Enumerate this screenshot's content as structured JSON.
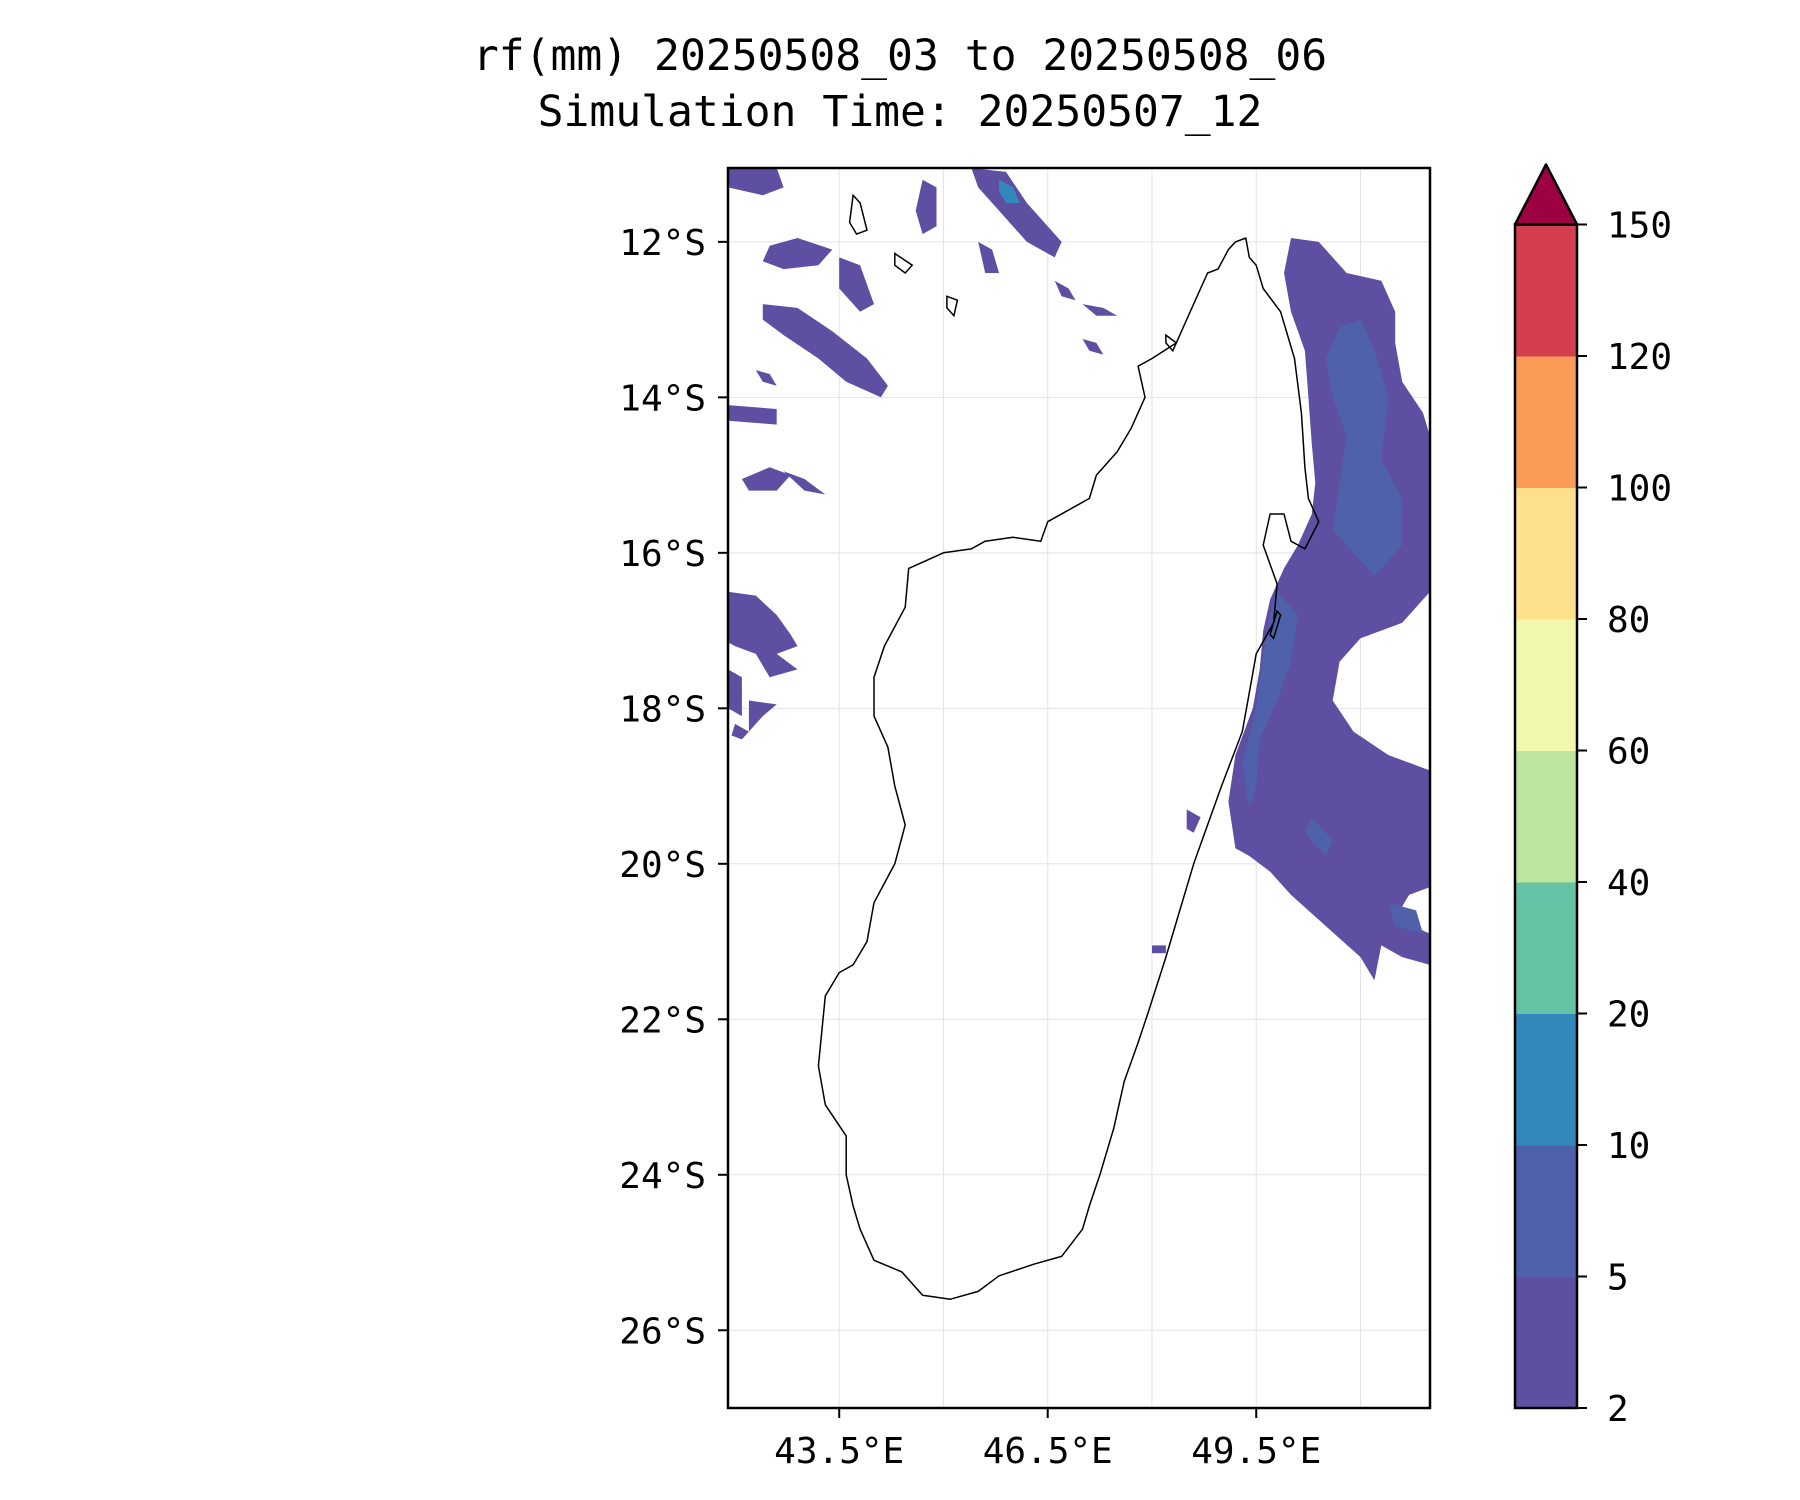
{
  "title": {
    "line1": "rf(mm) 20250508_03 to 20250508_06",
    "line2": "Simulation Time: 20250507_12"
  },
  "map": {
    "lon_range": [
      41.9,
      52.0
    ],
    "lat_range": [
      -27.0,
      -11.05
    ],
    "grid": true,
    "lat_ticks": [
      -12,
      -14,
      -16,
      -18,
      -20,
      -22,
      -24,
      -26
    ],
    "lat_tick_labels": [
      "12°S",
      "14°S",
      "16°S",
      "18°S",
      "20°S",
      "22°S",
      "24°S",
      "26°S"
    ],
    "lon_ticks": [
      43.5,
      46.5,
      49.5
    ],
    "lon_tick_labels": [
      "43.5°E",
      "46.5°E",
      "49.5°E"
    ],
    "minor_lon_gridlines": [
      45.0,
      48.0,
      51.0
    ],
    "coastline": [
      [
        49.2,
        -12.0
      ],
      [
        49.35,
        -11.95
      ],
      [
        49.4,
        -12.2
      ],
      [
        49.5,
        -12.3
      ],
      [
        49.6,
        -12.6
      ],
      [
        49.85,
        -12.9
      ],
      [
        50.05,
        -13.5
      ],
      [
        50.15,
        -14.2
      ],
      [
        50.2,
        -14.9
      ],
      [
        50.25,
        -15.3
      ],
      [
        50.4,
        -15.6
      ],
      [
        50.2,
        -15.95
      ],
      [
        50.0,
        -15.85
      ],
      [
        49.9,
        -15.5
      ],
      [
        49.7,
        -15.5
      ],
      [
        49.6,
        -15.9
      ],
      [
        49.8,
        -16.4
      ],
      [
        49.75,
        -16.9
      ],
      [
        49.5,
        -17.3
      ],
      [
        49.4,
        -17.8
      ],
      [
        49.3,
        -18.3
      ],
      [
        49.0,
        -19.0
      ],
      [
        48.8,
        -19.5
      ],
      [
        48.6,
        -20.0
      ],
      [
        48.4,
        -20.6
      ],
      [
        48.2,
        -21.2
      ],
      [
        47.95,
        -21.9
      ],
      [
        47.8,
        -22.3
      ],
      [
        47.6,
        -22.8
      ],
      [
        47.45,
        -23.4
      ],
      [
        47.25,
        -24.0
      ],
      [
        47.1,
        -24.4
      ],
      [
        47.0,
        -24.7
      ],
      [
        46.7,
        -25.05
      ],
      [
        46.3,
        -25.15
      ],
      [
        45.8,
        -25.3
      ],
      [
        45.5,
        -25.5
      ],
      [
        45.1,
        -25.6
      ],
      [
        44.7,
        -25.55
      ],
      [
        44.4,
        -25.25
      ],
      [
        44.0,
        -25.1
      ],
      [
        43.8,
        -24.7
      ],
      [
        43.7,
        -24.4
      ],
      [
        43.6,
        -24.0
      ],
      [
        43.6,
        -23.5
      ],
      [
        43.3,
        -23.1
      ],
      [
        43.2,
        -22.6
      ],
      [
        43.3,
        -21.7
      ],
      [
        43.5,
        -21.4
      ],
      [
        43.7,
        -21.3
      ],
      [
        43.9,
        -21.0
      ],
      [
        44.0,
        -20.5
      ],
      [
        44.3,
        -20.0
      ],
      [
        44.45,
        -19.5
      ],
      [
        44.3,
        -19.0
      ],
      [
        44.2,
        -18.5
      ],
      [
        44.0,
        -18.1
      ],
      [
        44.0,
        -17.6
      ],
      [
        44.15,
        -17.2
      ],
      [
        44.45,
        -16.7
      ],
      [
        44.5,
        -16.2
      ],
      [
        45.0,
        -16.0
      ],
      [
        45.4,
        -15.95
      ],
      [
        45.6,
        -15.85
      ],
      [
        46.0,
        -15.8
      ],
      [
        46.4,
        -15.85
      ],
      [
        46.5,
        -15.6
      ],
      [
        46.9,
        -15.4
      ],
      [
        47.1,
        -15.3
      ],
      [
        47.2,
        -15.0
      ],
      [
        47.5,
        -14.7
      ],
      [
        47.7,
        -14.4
      ],
      [
        47.9,
        -14.0
      ],
      [
        47.8,
        -13.6
      ],
      [
        48.0,
        -13.5
      ],
      [
        48.35,
        -13.3
      ],
      [
        48.5,
        -13.0
      ],
      [
        48.7,
        -12.6
      ],
      [
        48.8,
        -12.4
      ],
      [
        48.95,
        -12.35
      ],
      [
        49.1,
        -12.1
      ],
      [
        49.2,
        -12.0
      ]
    ],
    "islands": [
      [
        [
          43.7,
          -11.4
        ],
        [
          43.8,
          -11.5
        ],
        [
          43.9,
          -11.85
        ],
        [
          43.75,
          -11.9
        ],
        [
          43.65,
          -11.75
        ],
        [
          43.7,
          -11.4
        ]
      ],
      [
        [
          44.3,
          -12.15
        ],
        [
          44.55,
          -12.3
        ],
        [
          44.45,
          -12.4
        ],
        [
          44.3,
          -12.3
        ],
        [
          44.3,
          -12.15
        ]
      ],
      [
        [
          45.05,
          -12.7
        ],
        [
          45.2,
          -12.75
        ],
        [
          45.15,
          -12.95
        ],
        [
          45.05,
          -12.85
        ],
        [
          45.05,
          -12.7
        ]
      ],
      [
        [
          49.8,
          -16.75
        ],
        [
          49.85,
          -16.8
        ],
        [
          49.75,
          -17.1
        ],
        [
          49.7,
          -17.05
        ],
        [
          49.8,
          -16.75
        ]
      ],
      [
        [
          48.2,
          -13.2
        ],
        [
          48.35,
          -13.3
        ],
        [
          48.3,
          -13.4
        ],
        [
          48.2,
          -13.3
        ],
        [
          48.2,
          -13.2
        ]
      ]
    ],
    "rain_patches": [
      {
        "level": 1,
        "points": [
          [
            41.9,
            -11.05
          ],
          [
            42.6,
            -11.05
          ],
          [
            42.7,
            -11.3
          ],
          [
            42.4,
            -11.4
          ],
          [
            41.9,
            -11.3
          ]
        ]
      },
      {
        "level": 1,
        "points": [
          [
            42.5,
            -12.05
          ],
          [
            42.9,
            -11.95
          ],
          [
            43.4,
            -12.1
          ],
          [
            43.2,
            -12.3
          ],
          [
            42.7,
            -12.35
          ],
          [
            42.4,
            -12.25
          ]
        ]
      },
      {
        "level": 1,
        "points": [
          [
            42.4,
            -12.8
          ],
          [
            42.9,
            -12.85
          ],
          [
            43.4,
            -13.15
          ],
          [
            43.9,
            -13.5
          ],
          [
            44.2,
            -13.85
          ],
          [
            44.1,
            -14.0
          ],
          [
            43.6,
            -13.8
          ],
          [
            43.2,
            -13.5
          ],
          [
            42.7,
            -13.2
          ],
          [
            42.4,
            -13.0
          ]
        ]
      },
      {
        "level": 1,
        "points": [
          [
            43.5,
            -12.2
          ],
          [
            43.8,
            -12.3
          ],
          [
            44.0,
            -12.8
          ],
          [
            43.8,
            -12.9
          ],
          [
            43.5,
            -12.6
          ]
        ]
      },
      {
        "level": 1,
        "points": [
          [
            44.7,
            -11.2
          ],
          [
            44.9,
            -11.3
          ],
          [
            44.9,
            -11.8
          ],
          [
            44.7,
            -11.9
          ],
          [
            44.6,
            -11.6
          ]
        ]
      },
      {
        "level": 1,
        "points": [
          [
            45.4,
            -11.05
          ],
          [
            45.9,
            -11.1
          ],
          [
            46.2,
            -11.5
          ],
          [
            46.5,
            -11.8
          ],
          [
            46.7,
            -12.0
          ],
          [
            46.6,
            -12.2
          ],
          [
            46.2,
            -12.0
          ],
          [
            45.8,
            -11.6
          ],
          [
            45.5,
            -11.3
          ]
        ]
      },
      {
        "level": 3,
        "points": [
          [
            45.8,
            -11.2
          ],
          [
            46.0,
            -11.3
          ],
          [
            46.1,
            -11.5
          ],
          [
            45.9,
            -11.5
          ],
          [
            45.8,
            -11.35
          ]
        ]
      },
      {
        "level": 1,
        "points": [
          [
            45.5,
            -12.0
          ],
          [
            45.7,
            -12.1
          ],
          [
            45.8,
            -12.4
          ],
          [
            45.6,
            -12.4
          ]
        ]
      },
      {
        "level": 1,
        "points": [
          [
            46.6,
            -12.5
          ],
          [
            46.8,
            -12.6
          ],
          [
            46.9,
            -12.75
          ],
          [
            46.7,
            -12.7
          ]
        ]
      },
      {
        "level": 1,
        "points": [
          [
            47.0,
            -12.8
          ],
          [
            47.3,
            -12.85
          ],
          [
            47.5,
            -12.95
          ],
          [
            47.2,
            -12.95
          ]
        ]
      },
      {
        "level": 1,
        "points": [
          [
            47.0,
            -13.25
          ],
          [
            47.2,
            -13.3
          ],
          [
            47.3,
            -13.45
          ],
          [
            47.1,
            -13.4
          ]
        ]
      },
      {
        "level": 1,
        "points": [
          [
            41.9,
            -14.1
          ],
          [
            42.6,
            -14.15
          ],
          [
            42.6,
            -14.35
          ],
          [
            41.9,
            -14.3
          ]
        ]
      },
      {
        "level": 1,
        "points": [
          [
            42.3,
            -13.65
          ],
          [
            42.5,
            -13.7
          ],
          [
            42.6,
            -13.85
          ],
          [
            42.4,
            -13.8
          ]
        ]
      },
      {
        "level": 1,
        "points": [
          [
            42.1,
            -15.05
          ],
          [
            42.5,
            -14.9
          ],
          [
            42.8,
            -15.0
          ],
          [
            42.6,
            -15.2
          ],
          [
            42.2,
            -15.2
          ]
        ]
      },
      {
        "level": 1,
        "points": [
          [
            42.7,
            -14.95
          ],
          [
            43.0,
            -15.05
          ],
          [
            43.3,
            -15.25
          ],
          [
            43.0,
            -15.2
          ]
        ]
      },
      {
        "level": 1,
        "points": [
          [
            41.9,
            -16.5
          ],
          [
            42.3,
            -16.55
          ],
          [
            42.6,
            -16.8
          ],
          [
            42.8,
            -17.05
          ],
          [
            42.9,
            -17.2
          ],
          [
            42.6,
            -17.3
          ],
          [
            42.9,
            -17.5
          ],
          [
            42.5,
            -17.6
          ],
          [
            42.3,
            -17.3
          ],
          [
            42.0,
            -17.2
          ],
          [
            41.9,
            -17.15
          ]
        ]
      },
      {
        "level": 1,
        "points": [
          [
            41.9,
            -17.5
          ],
          [
            42.1,
            -17.6
          ],
          [
            42.1,
            -18.1
          ],
          [
            41.9,
            -18.0
          ]
        ]
      },
      {
        "level": 1,
        "points": [
          [
            42.2,
            -17.9
          ],
          [
            42.6,
            -17.95
          ],
          [
            42.4,
            -18.1
          ],
          [
            42.2,
            -18.3
          ]
        ]
      },
      {
        "level": 1,
        "points": [
          [
            42.0,
            -18.2
          ],
          [
            42.2,
            -18.3
          ],
          [
            42.1,
            -18.4
          ],
          [
            41.95,
            -18.35
          ]
        ]
      },
      {
        "level": 1,
        "points": [
          [
            50.0,
            -11.95
          ],
          [
            50.4,
            -12.0
          ],
          [
            50.8,
            -12.4
          ],
          [
            51.3,
            -12.5
          ],
          [
            51.5,
            -12.9
          ],
          [
            51.5,
            -13.3
          ],
          [
            51.6,
            -13.8
          ],
          [
            51.9,
            -14.2
          ],
          [
            52.0,
            -14.5
          ],
          [
            52.0,
            -16.5
          ],
          [
            51.6,
            -16.9
          ],
          [
            51.0,
            -17.1
          ],
          [
            50.7,
            -17.4
          ],
          [
            50.6,
            -17.9
          ],
          [
            50.9,
            -18.3
          ],
          [
            51.4,
            -18.6
          ],
          [
            52.0,
            -18.8
          ],
          [
            52.0,
            -20.3
          ],
          [
            51.7,
            -20.4
          ],
          [
            51.5,
            -20.7
          ],
          [
            52.0,
            -20.9
          ],
          [
            52.0,
            -21.3
          ],
          [
            51.6,
            -21.2
          ],
          [
            51.3,
            -21.05
          ],
          [
            51.2,
            -21.5
          ],
          [
            51.0,
            -21.2
          ],
          [
            50.5,
            -20.8
          ],
          [
            50.0,
            -20.4
          ],
          [
            49.7,
            -20.1
          ],
          [
            49.4,
            -19.9
          ],
          [
            49.2,
            -19.8
          ],
          [
            49.1,
            -19.2
          ],
          [
            49.2,
            -18.6
          ],
          [
            49.45,
            -18.0
          ],
          [
            49.55,
            -17.5
          ],
          [
            49.6,
            -17.0
          ],
          [
            49.7,
            -16.6
          ],
          [
            49.9,
            -16.2
          ],
          [
            50.1,
            -15.9
          ],
          [
            50.3,
            -15.5
          ],
          [
            50.35,
            -15.1
          ],
          [
            50.3,
            -14.6
          ],
          [
            50.25,
            -14.0
          ],
          [
            50.2,
            -13.4
          ],
          [
            50.0,
            -12.9
          ],
          [
            49.9,
            -12.4
          ]
        ]
      },
      {
        "level": 2,
        "points": [
          [
            51.0,
            -13.0
          ],
          [
            51.2,
            -13.4
          ],
          [
            51.4,
            -14.0
          ],
          [
            51.3,
            -14.8
          ],
          [
            51.6,
            -15.3
          ],
          [
            51.6,
            -15.9
          ],
          [
            51.2,
            -16.3
          ],
          [
            50.9,
            -16.0
          ],
          [
            50.6,
            -15.7
          ],
          [
            50.7,
            -15.1
          ],
          [
            50.8,
            -14.5
          ],
          [
            50.6,
            -14.0
          ],
          [
            50.5,
            -13.5
          ],
          [
            50.7,
            -13.1
          ]
        ]
      },
      {
        "level": 2,
        "points": [
          [
            49.8,
            -16.5
          ],
          [
            50.1,
            -16.8
          ],
          [
            50.0,
            -17.4
          ],
          [
            49.8,
            -17.9
          ],
          [
            49.55,
            -18.4
          ],
          [
            49.5,
            -19.0
          ],
          [
            49.4,
            -19.3
          ],
          [
            49.3,
            -18.7
          ],
          [
            49.5,
            -18.0
          ],
          [
            49.6,
            -17.3
          ],
          [
            49.7,
            -16.8
          ]
        ]
      },
      {
        "level": 2,
        "points": [
          [
            50.3,
            -19.4
          ],
          [
            50.6,
            -19.7
          ],
          [
            50.5,
            -19.9
          ],
          [
            50.2,
            -19.6
          ]
        ]
      },
      {
        "level": 2,
        "points": [
          [
            51.4,
            -20.5
          ],
          [
            51.8,
            -20.6
          ],
          [
            51.9,
            -20.9
          ],
          [
            51.5,
            -20.8
          ]
        ]
      },
      {
        "level": 1,
        "points": [
          [
            48.5,
            -19.3
          ],
          [
            48.7,
            -19.4
          ],
          [
            48.6,
            -19.6
          ],
          [
            48.5,
            -19.55
          ]
        ]
      },
      {
        "level": 1,
        "points": [
          [
            48.0,
            -21.05
          ],
          [
            48.2,
            -21.05
          ],
          [
            48.2,
            -21.15
          ],
          [
            48.0,
            -21.15
          ]
        ]
      },
      {
        "level": 1,
        "points": [
          [
            50.5,
            -20.3
          ],
          [
            50.65,
            -20.4
          ],
          [
            50.6,
            -20.55
          ],
          [
            50.45,
            -20.45
          ]
        ]
      }
    ]
  },
  "colorbar": {
    "tick_labels": [
      "2",
      "5",
      "10",
      "20",
      "40",
      "60",
      "80",
      "100",
      "120",
      "150"
    ],
    "colors": [
      "#5e4fa2",
      "#4f61aa",
      "#3288bd",
      "#66c2a5",
      "#bee5a0",
      "#f2f9ae",
      "#fedf8c",
      "#fa9b58",
      "#d53e4f"
    ],
    "extend_color": "#9e0142",
    "extend": "max"
  }
}
